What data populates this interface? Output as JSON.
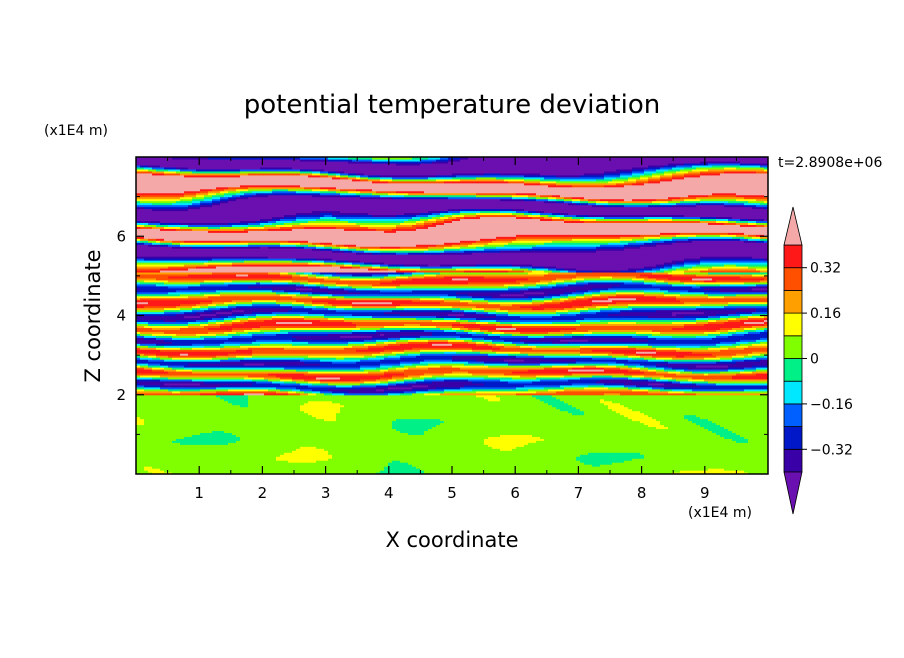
{
  "chart_data": {
    "type": "heatmap",
    "title": "potential temperature deviation",
    "xlabel": "X coordinate",
    "ylabel": "Z coordinate",
    "x_units": "(x1E4 m)",
    "y_units": "(x1E4 m)",
    "time_label": "t=2.8908e+06",
    "xlim": [
      0,
      10
    ],
    "ylim": [
      0,
      8
    ],
    "x_ticks": [
      "1",
      "2",
      "3",
      "4",
      "5",
      "6",
      "7",
      "8",
      "9"
    ],
    "y_ticks": [
      "2",
      "4",
      "6"
    ],
    "x_tick_values": [
      1,
      2,
      3,
      4,
      5,
      6,
      7,
      8,
      9
    ],
    "y_tick_values": [
      2,
      4,
      6
    ],
    "colorbar": {
      "levels": [
        -0.4,
        -0.32,
        -0.24,
        -0.16,
        -0.08,
        0,
        0.08,
        0.16,
        0.24,
        0.32,
        0.4
      ],
      "labels": [
        "0.32",
        "0.16",
        "0",
        "−0.16",
        "−0.32"
      ],
      "label_values": [
        0.32,
        0.16,
        0,
        -0.16,
        -0.32
      ],
      "colors": [
        "#6a0fb0",
        "#3a00a8",
        "#0018c8",
        "#0060ff",
        "#00e8ff",
        "#00f088",
        "#80ff00",
        "#ffff00",
        "#ffa000",
        "#ff5000",
        "#ff1818",
        "#f4a8a8"
      ],
      "extend": "both"
    },
    "regions": [
      {
        "z_range": [
          0,
          2
        ],
        "description_level": "near zero, alternating 0 and 0.08 contours"
      },
      {
        "z_range": [
          2,
          5
        ],
        "description_level": "layered bands from -0.4 to 0.4"
      },
      {
        "z_range": [
          5,
          8
        ],
        "description_level": "strong alternating bands beyond +/-0.4"
      }
    ]
  }
}
